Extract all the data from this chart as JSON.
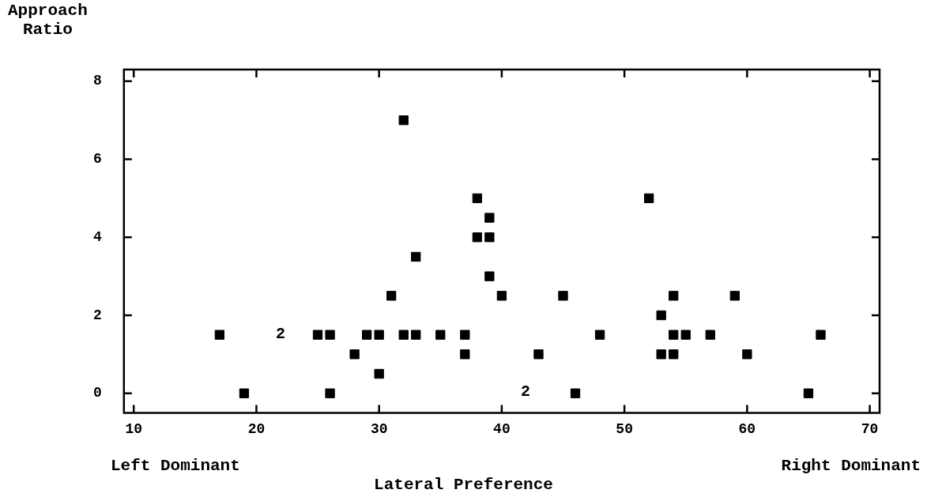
{
  "chart_data": {
    "type": "scatter",
    "xlabel": "Lateral Preference",
    "ylabel": "Approach Ratio",
    "series": [
      {
        "color": "#000000",
        "x": [
          17,
          19,
          25,
          26,
          26,
          28,
          29,
          30,
          30,
          31,
          32,
          32,
          33,
          33,
          35,
          37,
          37,
          38,
          38,
          39,
          39,
          39,
          40,
          43,
          45,
          46,
          48,
          52,
          53,
          53,
          54,
          54,
          54,
          55,
          57,
          59,
          60,
          65,
          66
        ],
        "values": [
          1.5,
          0,
          1.5,
          1.5,
          0,
          1,
          1.5,
          1.5,
          0.5,
          2.5,
          7,
          1.5,
          3.5,
          1.5,
          1.5,
          1.5,
          1,
          5,
          4,
          4.5,
          4,
          3,
          2.5,
          1,
          2.5,
          0,
          1.5,
          5,
          2,
          1,
          2.5,
          1.5,
          1,
          1.5,
          1.5,
          2.5,
          1,
          0,
          1.5
        ]
      }
    ],
    "marker": "square",
    "grid": false,
    "legend": false,
    "xlim": [
      9.2,
      70.8
    ],
    "xticks": [
      10,
      20,
      30,
      40,
      50,
      60,
      70
    ],
    "ylim": [
      -0.5,
      8.3
    ],
    "yticks": [
      0,
      2,
      4,
      6,
      8
    ],
    "annotations": [
      "2",
      "2",
      "Left Dominant",
      "Right Dominant"
    ]
  }
}
